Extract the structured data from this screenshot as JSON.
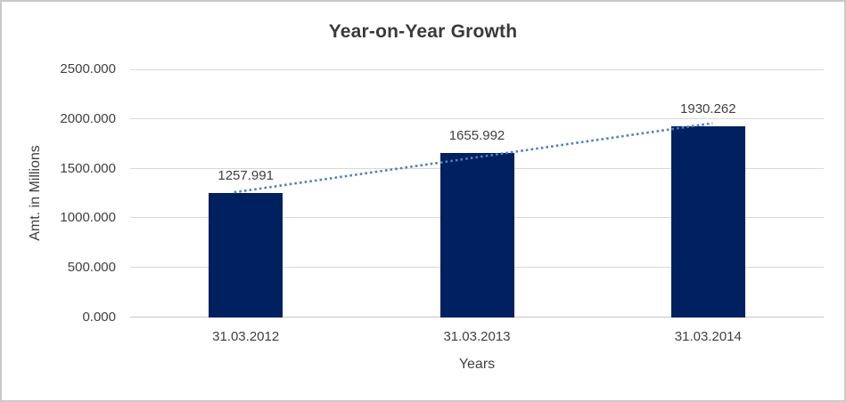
{
  "chart_data": {
    "type": "bar",
    "title": "Year-on-Year Growth",
    "xlabel": "Years",
    "ylabel": "Amt. in Millions",
    "categories": [
      "31.03.2012",
      "31.03.2013",
      "31.03.2014"
    ],
    "values": [
      1257.991,
      1655.992,
      1930.262
    ],
    "data_labels": [
      "1257.991",
      "1655.992",
      "1930.262"
    ],
    "ylim": [
      0,
      2500
    ],
    "ytick_step": 500,
    "ytick_labels": [
      "0.000",
      "500.000",
      "1000.000",
      "1500.000",
      "2000.000",
      "2500.000"
    ],
    "grid": true,
    "legend": "none",
    "trendline": {
      "type": "linear",
      "style": "dotted"
    },
    "colors": {
      "bar": "#002060",
      "trendline": "#4F81BD",
      "gridline": "#D9D9D9",
      "axis_line": "#C6C6C6",
      "text": "#404040",
      "title": "#3A3A3A",
      "chart_border": "#C9C9C9",
      "background": "#FFFFFF"
    }
  }
}
